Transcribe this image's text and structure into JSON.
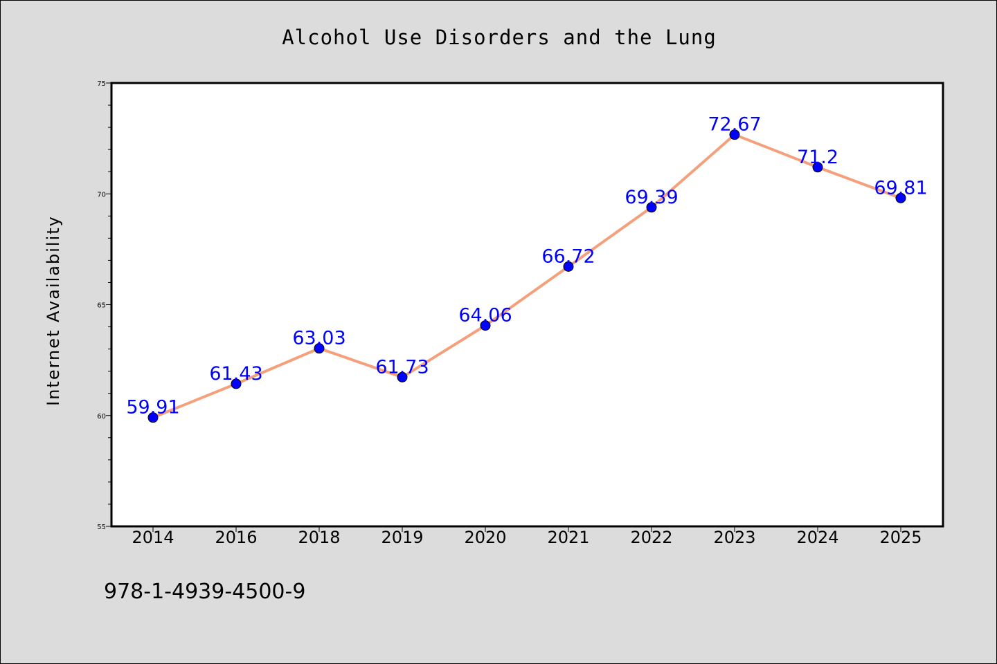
{
  "chart_data": {
    "type": "line",
    "title": "Alcohol Use Disorders and the Lung",
    "xlabel": "",
    "ylabel": "Internet Availability",
    "categories": [
      "2014",
      "2016",
      "2018",
      "2019",
      "2020",
      "2021",
      "2022",
      "2023",
      "2024",
      "2025"
    ],
    "series": [
      {
        "values": [
          59.91,
          61.43,
          63.03,
          61.73,
          64.06,
          66.72,
          69.39,
          72.67,
          71.2,
          69.81
        ],
        "data_labels": [
          "59.91",
          "61.43",
          "63.03",
          "61.73",
          "64.06",
          "66.72",
          "69.39",
          "72.67",
          "71.2",
          "69.81"
        ],
        "line_color": "#f4a07c",
        "marker_color": "#0000ff",
        "label_color": "#0000ff"
      }
    ],
    "ylim": [
      55,
      75
    ],
    "yticks": [
      55,
      60,
      65,
      70,
      75
    ],
    "ytick_labels": [
      "55",
      "60",
      "65",
      "70",
      "75"
    ],
    "y_minor_step": 1,
    "grid": false,
    "legend": "none",
    "background_color": "#dcdcdc",
    "plot_background_color": "#ffffff"
  },
  "footer_text": "978-1-4939-4500-9"
}
